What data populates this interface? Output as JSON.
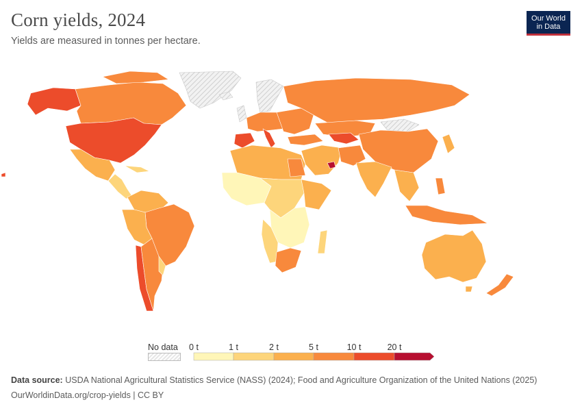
{
  "header": {
    "title": "Corn yields, 2024",
    "subtitle": "Yields are measured in tonnes per hectare."
  },
  "logo": {
    "line1": "Our World",
    "line2": "in Data"
  },
  "legend": {
    "no_data_label": "No data",
    "bins": [
      {
        "label": "0 t",
        "color": "#fff6b8"
      },
      {
        "label": "1 t",
        "color": "#fdd57b"
      },
      {
        "label": "2 t",
        "color": "#fbb04e"
      },
      {
        "label": "5 t",
        "color": "#f8893c"
      },
      {
        "label": "10 t",
        "color": "#ec4c2b"
      },
      {
        "label": "20 t",
        "color": "#b70f30"
      }
    ]
  },
  "footer": {
    "source_label": "Data source:",
    "source_text": "USDA National Agricultural Statistics Service (NASS) (2024); Food and Agriculture Organization of the United Nations (2025)",
    "url": "OurWorldinData.org/crop-yields | CC BY"
  },
  "colors": {
    "no_data": "#e6e6e6",
    "very_low": "#fff6b8",
    "low": "#fdd57b",
    "medium": "#fbb04e",
    "high": "#f8893c",
    "very_high": "#ec4c2b",
    "max": "#b70f30"
  }
}
